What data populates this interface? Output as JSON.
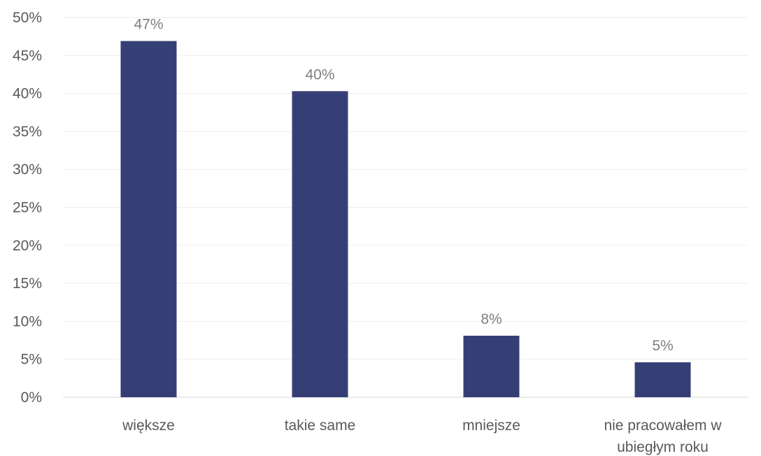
{
  "chart_data": {
    "type": "bar",
    "categories": [
      "większe",
      "takie same",
      "mniejsze",
      "nie pracowałem  w ubiegłym roku"
    ],
    "category_lines": [
      [
        "większe"
      ],
      [
        "takie same"
      ],
      [
        "mniejsze"
      ],
      [
        "nie pracowałem  w",
        "ubiegłym roku"
      ]
    ],
    "values": [
      47,
      40,
      8,
      5
    ],
    "data_labels": [
      "47%",
      "40%",
      "8%",
      "5%"
    ],
    "bar_heights_pct": [
      46.9,
      40.3,
      8.1,
      4.6
    ],
    "ylim": [
      0,
      50
    ],
    "yticks": [
      0,
      5,
      10,
      15,
      20,
      25,
      30,
      35,
      40,
      45,
      50
    ],
    "ytick_labels": [
      "0%",
      "5%",
      "10%",
      "15%",
      "20%",
      "25%",
      "30%",
      "35%",
      "40%",
      "45%",
      "50%"
    ],
    "grid": true,
    "legend": "none",
    "title": "",
    "xlabel": "",
    "ylabel": "",
    "colors": {
      "bar": "#363f75"
    }
  }
}
